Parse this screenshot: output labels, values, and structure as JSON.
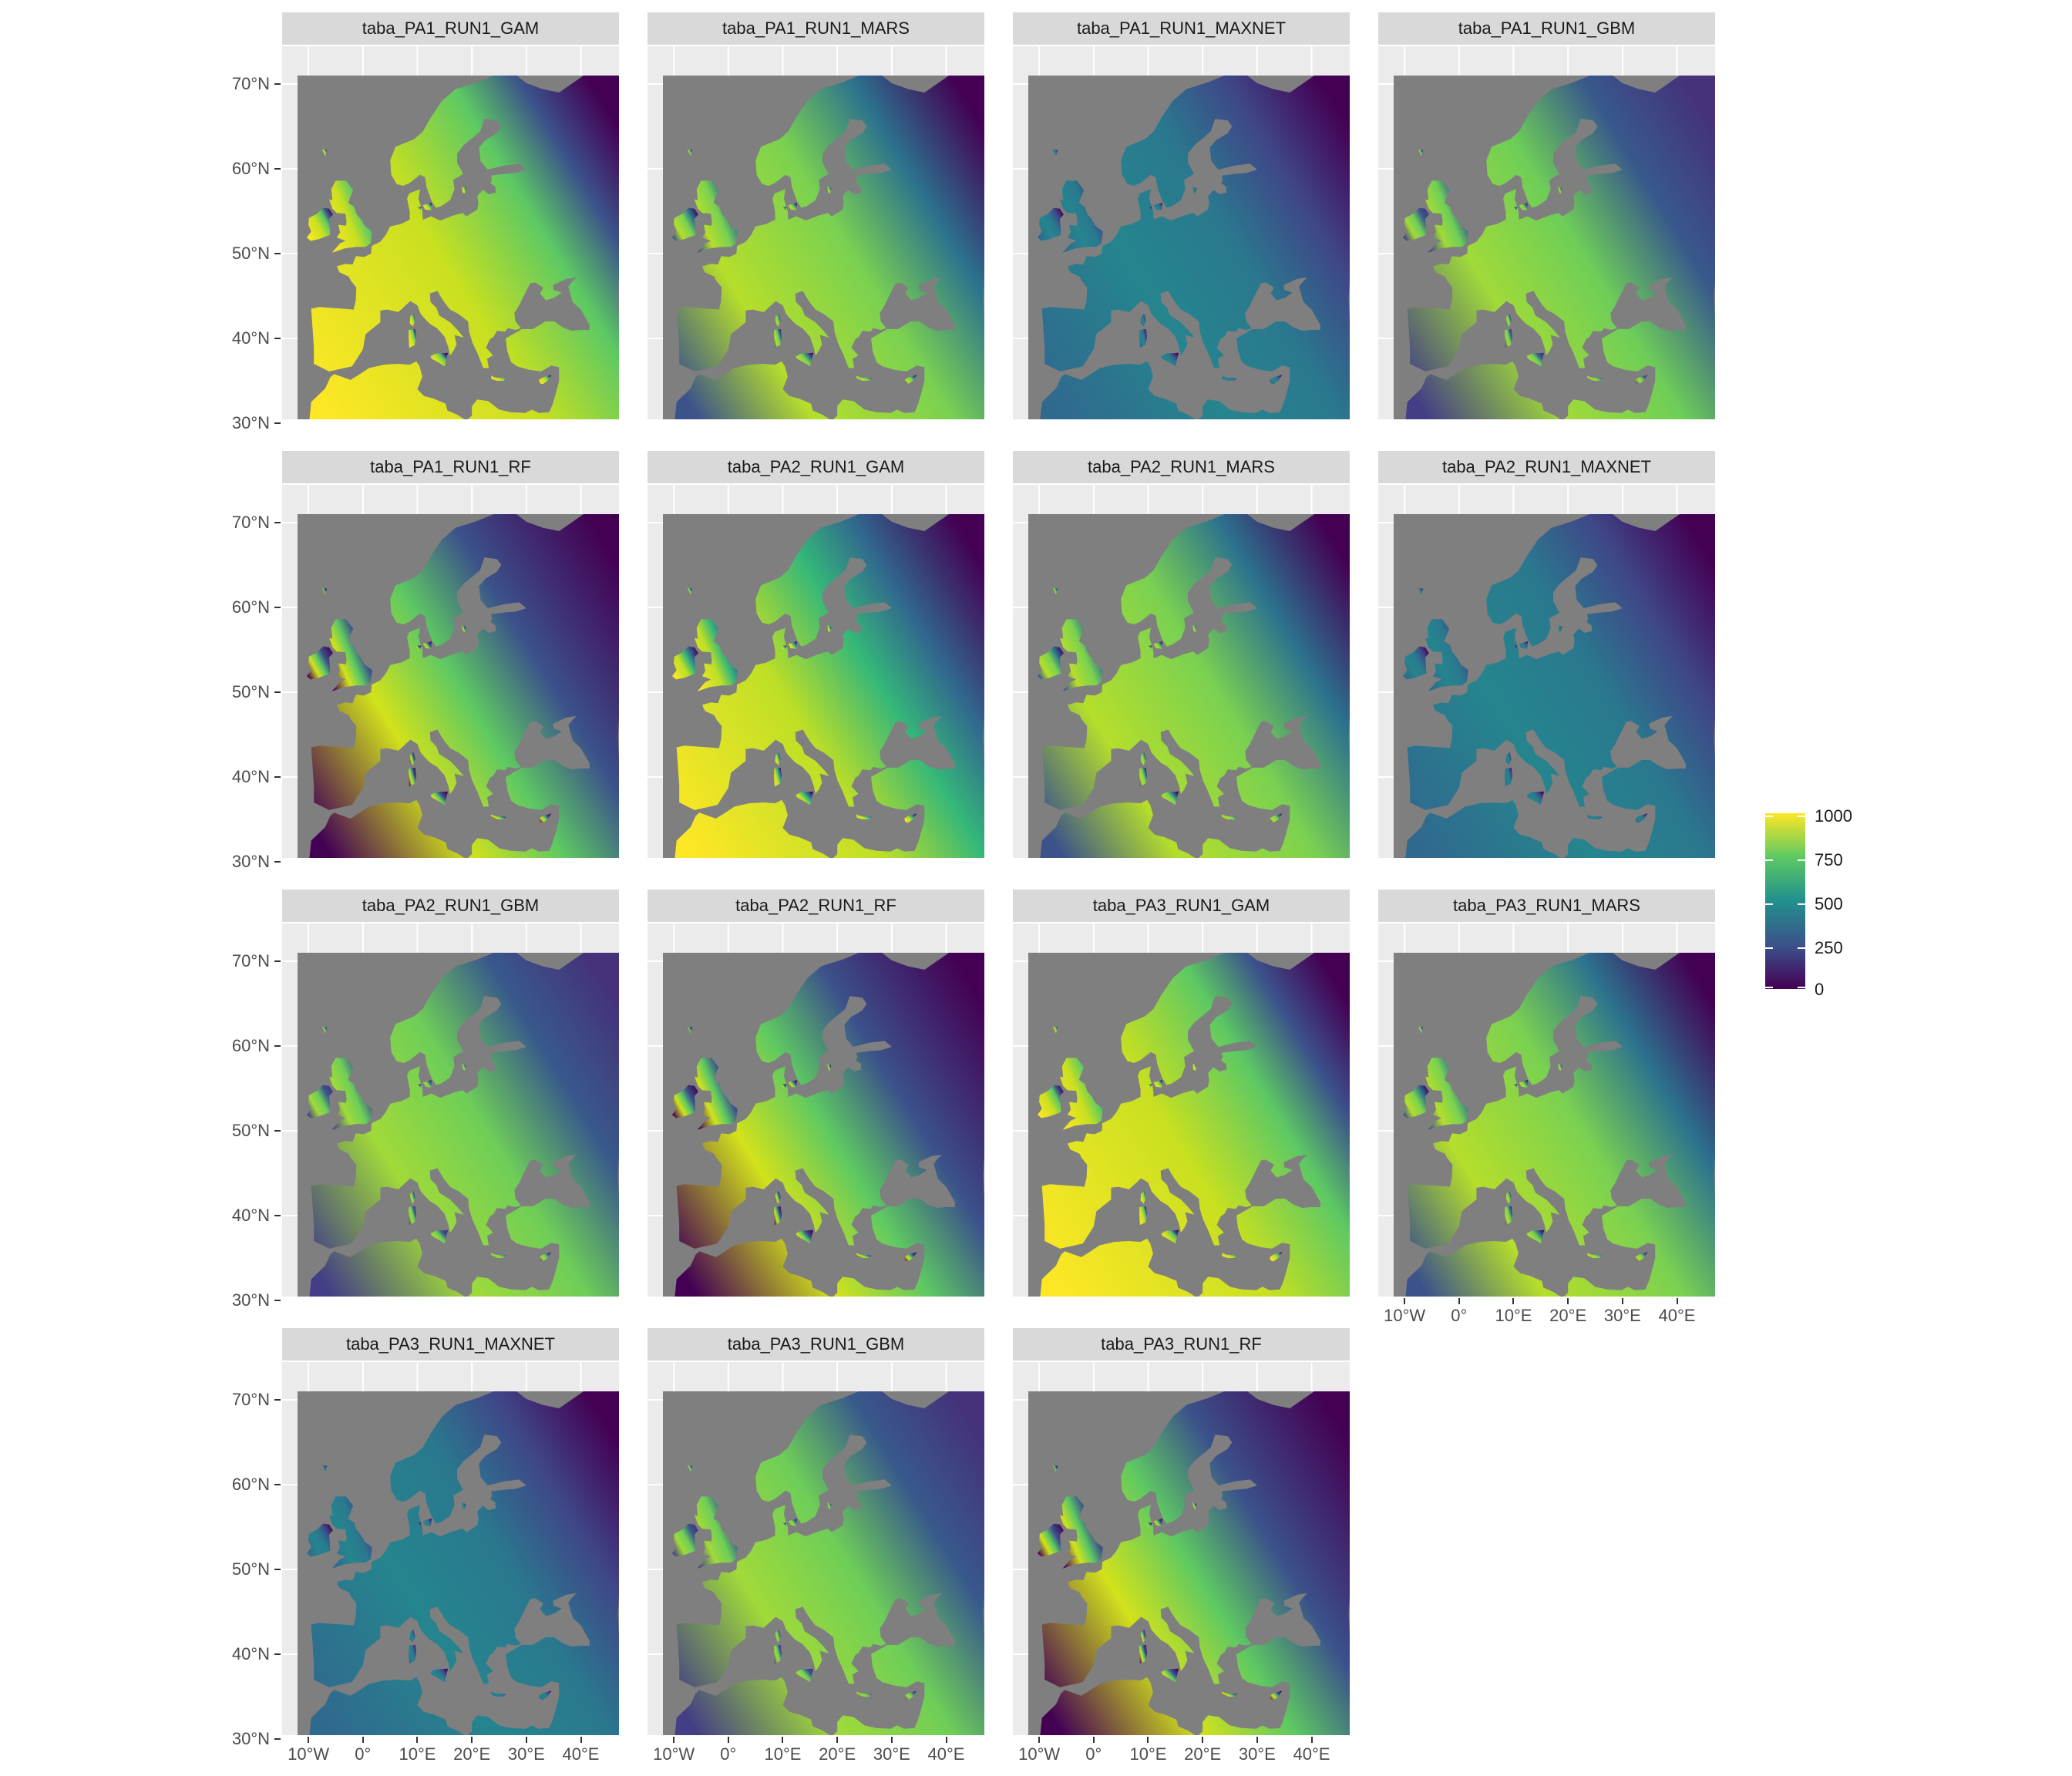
{
  "panels": [
    {
      "title": "taba_PA1_RUN1_GAM",
      "palette": "gam"
    },
    {
      "title": "taba_PA1_RUN1_MARS",
      "palette": "mars"
    },
    {
      "title": "taba_PA1_RUN1_MAXNET",
      "palette": "maxnet"
    },
    {
      "title": "taba_PA1_RUN1_GBM",
      "palette": "gbm"
    },
    {
      "title": "taba_PA1_RUN1_RF",
      "palette": "rf"
    },
    {
      "title": "taba_PA2_RUN1_GAM",
      "palette": "gam2"
    },
    {
      "title": "taba_PA2_RUN1_MARS",
      "palette": "mars"
    },
    {
      "title": "taba_PA2_RUN1_MAXNET",
      "palette": "maxnet"
    },
    {
      "title": "taba_PA2_RUN1_GBM",
      "palette": "gbm"
    },
    {
      "title": "taba_PA2_RUN1_RF",
      "palette": "rf"
    },
    {
      "title": "taba_PA3_RUN1_GAM",
      "palette": "gam"
    },
    {
      "title": "taba_PA3_RUN1_MARS",
      "palette": "mars"
    },
    {
      "title": "taba_PA3_RUN1_MAXNET",
      "palette": "maxnet"
    },
    {
      "title": "taba_PA3_RUN1_GBM",
      "palette": "gbm"
    },
    {
      "title": "taba_PA3_RUN1_RF",
      "palette": "rf"
    }
  ],
  "axes": {
    "y_ticks": [
      "70°N",
      "60°N",
      "50°N",
      "40°N",
      "30°N"
    ],
    "x_ticks": [
      "10°W",
      "0°",
      "10°E",
      "20°E",
      "30°E",
      "40°E"
    ],
    "lat_range": [
      29,
      71
    ],
    "lon_range": [
      -12,
      47
    ]
  },
  "legend": {
    "labels": [
      "1000",
      "750",
      "500",
      "250",
      "0"
    ],
    "range": [
      0,
      1000
    ],
    "colors": [
      "#440154",
      "#3b528b",
      "#21908d",
      "#5dc963",
      "#fde725"
    ]
  },
  "colors": {
    "ocean": "#7f7f7f",
    "panel_bg": "#ebebeb",
    "strip_bg": "#d9d9d9",
    "low": "#440154",
    "high": "#fde725"
  }
}
